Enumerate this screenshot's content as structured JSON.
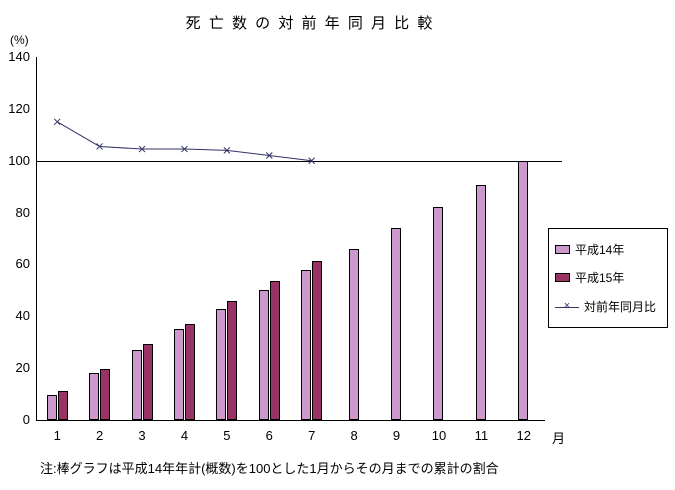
{
  "title": "死 亡 数 の 対 前 年 同 月 比 較",
  "y_axis_unit": "(%)",
  "x_axis_unit": "月",
  "note": "注:棒グラフは平成14年年計(概数)を100とした1月からその月までの累計の割合",
  "colors": {
    "h14": "#CC99CC",
    "h15": "#993366",
    "line": "#333366",
    "axis": "#000000"
  },
  "chart_data": {
    "type": "bar",
    "title": "死亡数の対前年同月比較",
    "categories": [
      "1",
      "2",
      "3",
      "4",
      "5",
      "6",
      "7",
      "8",
      "9",
      "10",
      "11",
      "12"
    ],
    "y_ticks": [
      0,
      20,
      40,
      60,
      80,
      100,
      120,
      140
    ],
    "ylim": [
      0,
      140
    ],
    "reference_line": 100,
    "legend_position": "right",
    "series": [
      {
        "name": "平成14年",
        "type": "bar",
        "values": [
          9.5,
          18,
          27,
          35,
          43,
          50,
          58,
          66,
          74,
          82,
          90.5,
          100
        ]
      },
      {
        "name": "平成15年",
        "type": "bar",
        "values": [
          11,
          19.5,
          29.5,
          37,
          46,
          53.5,
          61.5,
          null,
          null,
          null,
          null,
          null
        ]
      },
      {
        "name": "対前年同月比",
        "type": "line",
        "marker": "x",
        "values": [
          115,
          105.5,
          104.5,
          104.5,
          104,
          102,
          100,
          null,
          null,
          null,
          null,
          null
        ]
      }
    ]
  }
}
